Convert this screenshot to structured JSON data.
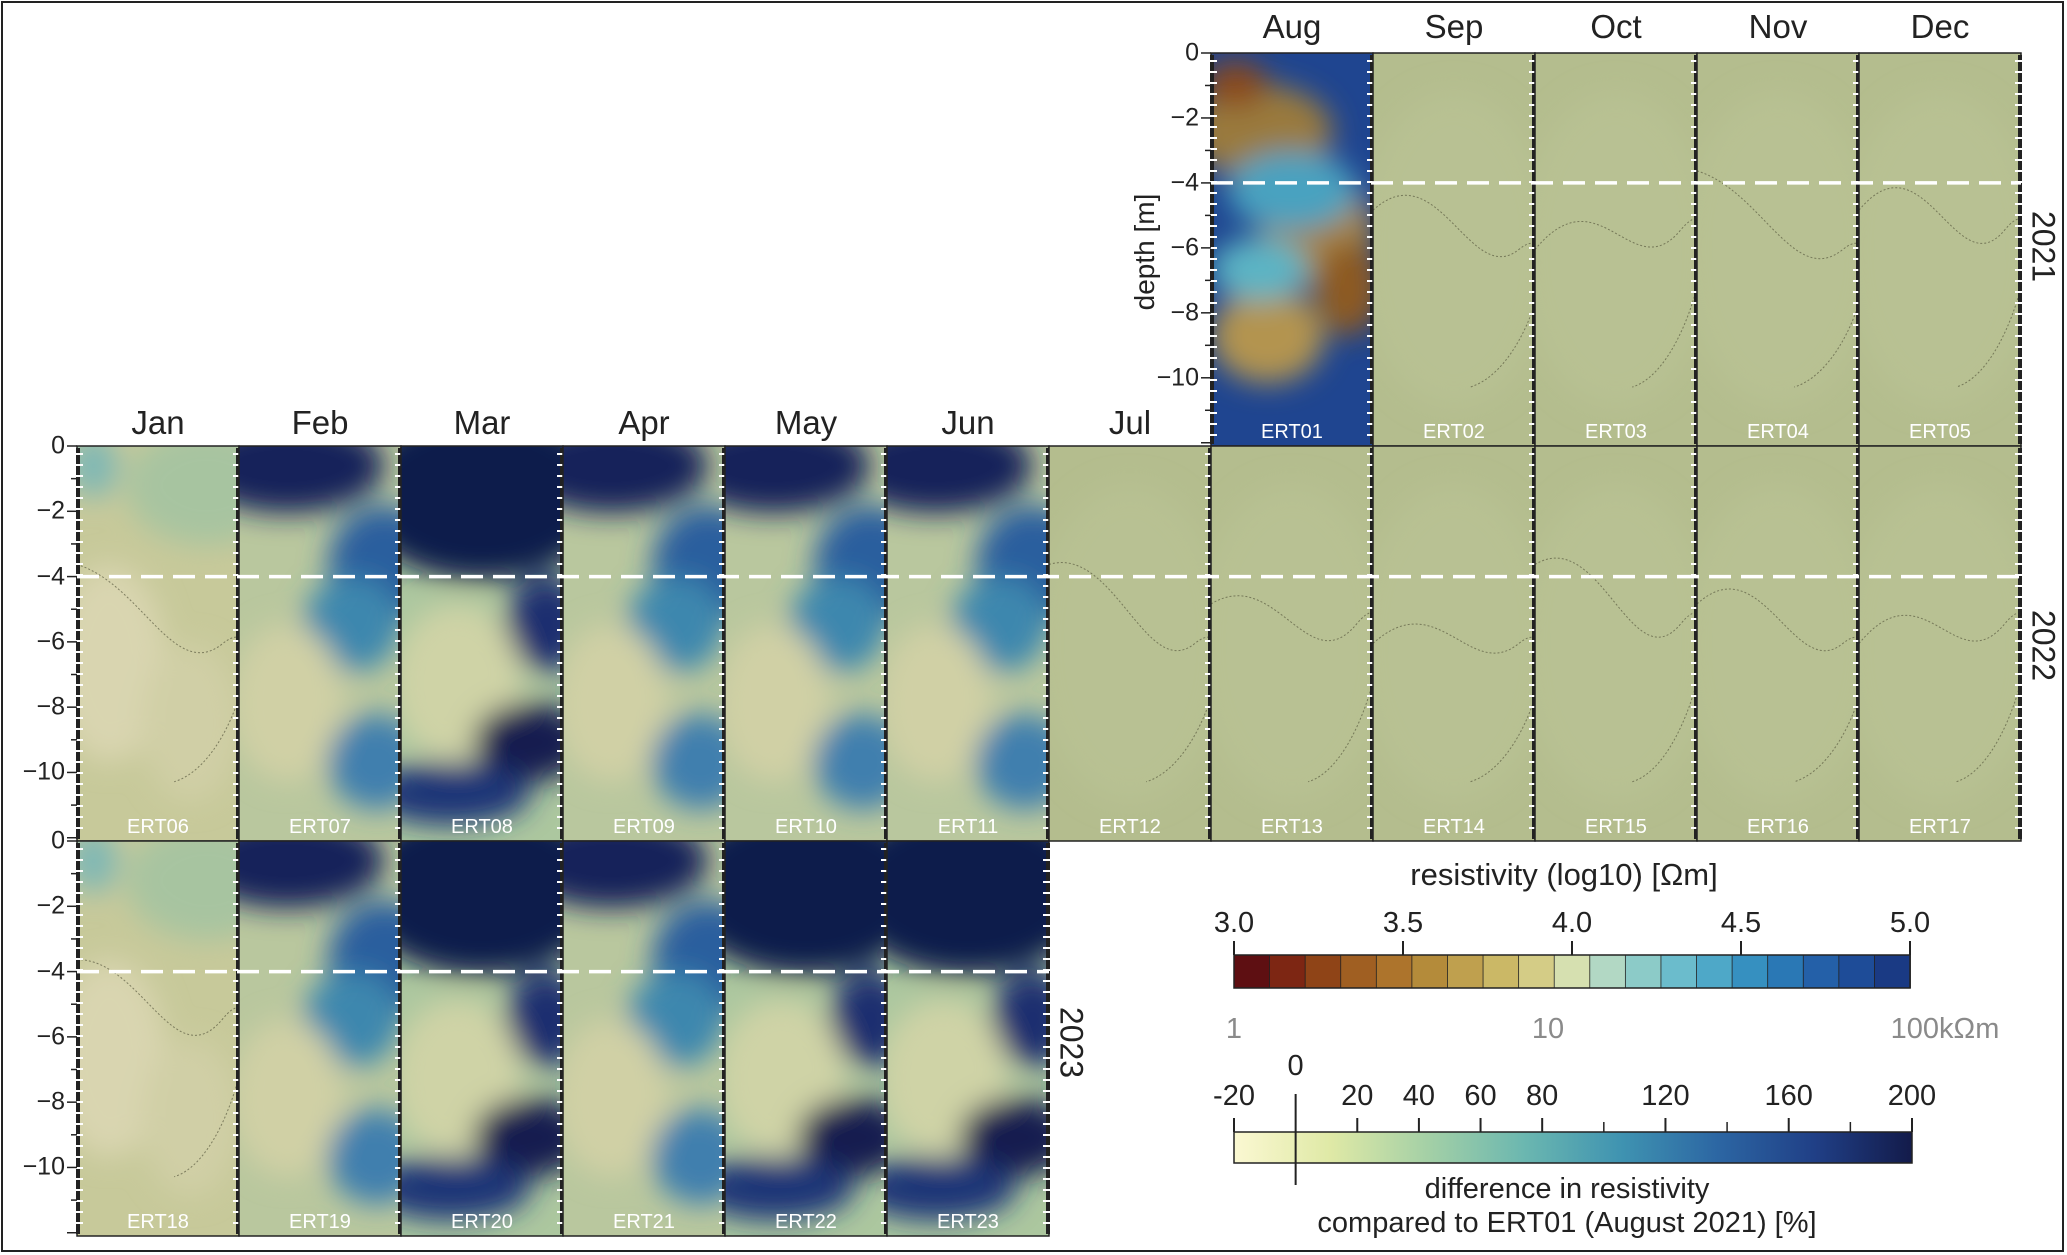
{
  "months_top": [
    "Aug",
    "Sep",
    "Oct",
    "Nov",
    "Dec"
  ],
  "months_mid": [
    "Jan",
    "Feb",
    "Mar",
    "Apr",
    "May",
    "Jun",
    "Jul"
  ],
  "years": {
    "y2021": "2021",
    "y2022": "2022",
    "y2023": "2023"
  },
  "depth_axis_label": "depth [m]",
  "depth_ticks": [
    "0",
    "−2",
    "−4",
    "−6",
    "−8",
    "−10"
  ],
  "rows": [
    {
      "year": "2021",
      "panels": [
        {
          "month": "Aug",
          "id": "ERT01",
          "fill": "hot"
        },
        {
          "month": "Sep",
          "id": "ERT02",
          "fill": "flat"
        },
        {
          "month": "Oct",
          "id": "ERT03",
          "fill": "flat"
        },
        {
          "month": "Nov",
          "id": "ERT04",
          "fill": "flat"
        },
        {
          "month": "Dec",
          "id": "ERT05",
          "fill": "flat"
        }
      ]
    },
    {
      "year": "2022",
      "panels": [
        {
          "month": "Jan",
          "id": "ERT06",
          "fill": "light"
        },
        {
          "month": "Feb",
          "id": "ERT07",
          "fill": "medium"
        },
        {
          "month": "Mar",
          "id": "ERT08",
          "fill": "dark"
        },
        {
          "month": "Apr",
          "id": "ERT09",
          "fill": "medium"
        },
        {
          "month": "May",
          "id": "ERT10",
          "fill": "medium"
        },
        {
          "month": "Jun",
          "id": "ERT11",
          "fill": "medium"
        },
        {
          "month": "Jul",
          "id": "ERT12",
          "fill": "flat"
        },
        {
          "month": "Aug",
          "id": "ERT13",
          "fill": "flat"
        },
        {
          "month": "Sep",
          "id": "ERT14",
          "fill": "flat"
        },
        {
          "month": "Oct",
          "id": "ERT15",
          "fill": "flat"
        },
        {
          "month": "Nov",
          "id": "ERT16",
          "fill": "flat"
        },
        {
          "month": "Dec",
          "id": "ERT17",
          "fill": "flat"
        }
      ]
    },
    {
      "year": "2023",
      "panels": [
        {
          "month": "Jan",
          "id": "ERT18",
          "fill": "light"
        },
        {
          "month": "Feb",
          "id": "ERT19",
          "fill": "medium"
        },
        {
          "month": "Mar",
          "id": "ERT20",
          "fill": "dark"
        },
        {
          "month": "Apr",
          "id": "ERT21",
          "fill": "medium"
        },
        {
          "month": "May",
          "id": "ERT22",
          "fill": "dark"
        },
        {
          "month": "Jun",
          "id": "ERT23",
          "fill": "dark"
        }
      ]
    }
  ],
  "reference_depth_m": -4,
  "resistivity_bar": {
    "title": "resistivity (log10) [Ωm]",
    "top_ticks": [
      "3.0",
      "3.5",
      "4.0",
      "4.5",
      "5.0"
    ],
    "bottom_ticks": [
      "1",
      "10",
      "100kΩm"
    ],
    "colors": [
      "#5e0f12",
      "#7d2613",
      "#8f4417",
      "#a05f22",
      "#ad742c",
      "#b48b3a",
      "#bfa04e",
      "#cbb866",
      "#d4cc86",
      "#d6e0b0",
      "#b2d8c4",
      "#8ccbc8",
      "#6bbccc",
      "#4ea8c8",
      "#3690c0",
      "#2a78b5",
      "#2460a8",
      "#1e4c98",
      "#1a3a84"
    ]
  },
  "difference_bar": {
    "ticks": [
      "-20",
      "0",
      "20",
      "40",
      "60",
      "80",
      "120",
      "160",
      "200"
    ],
    "label_line1": "difference in resistivity",
    "label_line2": "compared to ERT01 (August 2021) [%]",
    "colors": [
      "#fbf8d2",
      "#dfe9a6",
      "#a4d0a6",
      "#6bb7b0",
      "#3f93b1",
      "#2c66a3",
      "#203f86",
      "#131b4a"
    ]
  },
  "palette": {
    "flat": "#b4bd8e",
    "contour": "#5a5a40",
    "dashed_line": "#ffffff"
  }
}
